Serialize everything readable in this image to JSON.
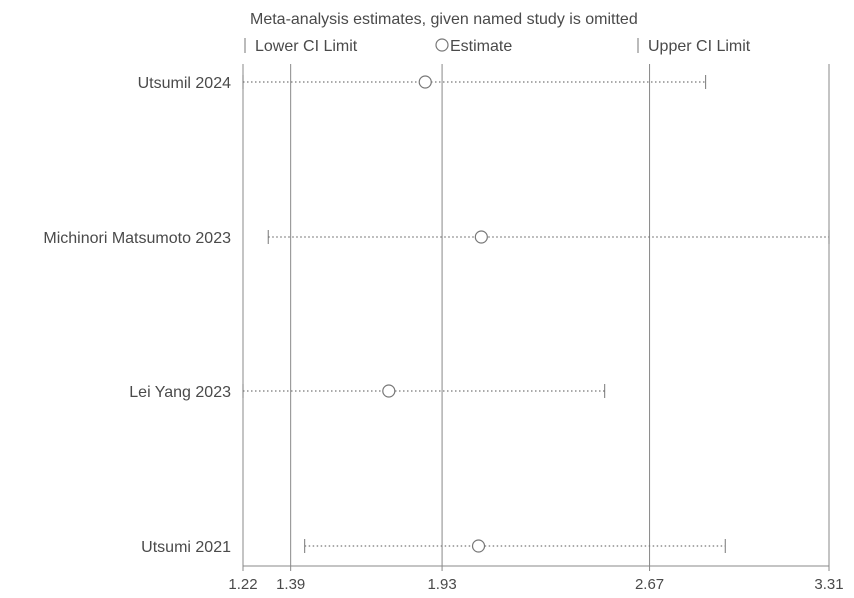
{
  "chart_data": {
    "type": "forest",
    "title": "Meta-analysis estimates, given named study is omitted",
    "legend": {
      "lower": "Lower CI Limit",
      "estimate": "Estimate",
      "upper": "Upper CI Limit",
      "placement": "top"
    },
    "x_ticks": [
      1.22,
      1.39,
      1.93,
      2.67,
      3.31
    ],
    "x_tick_labels": [
      "1.22",
      "1.39",
      "1.93",
      "2.67",
      "3.31"
    ],
    "xlim": [
      1.22,
      3.31
    ],
    "studies": [
      {
        "label": "Utsumil 2024",
        "lower": 1.22,
        "estimate": 1.87,
        "upper": 2.87
      },
      {
        "label": "Michinori Matsumoto 2023",
        "lower": 1.31,
        "estimate": 2.07,
        "upper": 3.31
      },
      {
        "label": "Lei Yang 2023",
        "lower": 1.22,
        "estimate": 1.74,
        "upper": 2.51
      },
      {
        "label": "Utsumi 2021",
        "lower": 1.44,
        "estimate": 2.06,
        "upper": 2.94
      }
    ],
    "grid": "vertical lines at tick values"
  }
}
